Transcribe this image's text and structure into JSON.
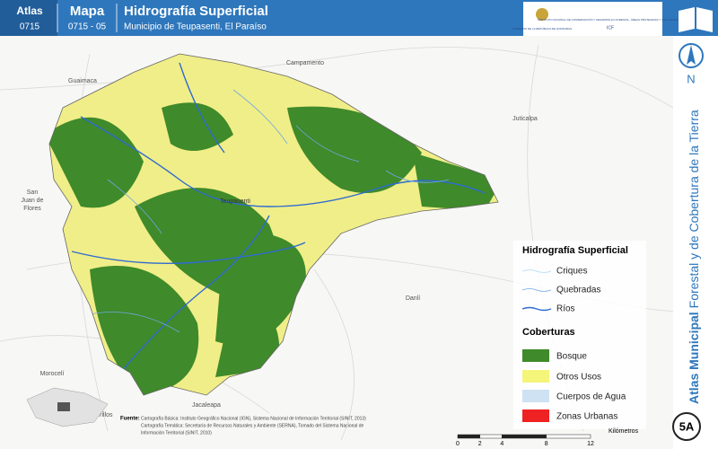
{
  "header": {
    "atlas_label": "Atlas",
    "atlas_code": "0715",
    "map_label": "Mapa",
    "map_code": "0715 - 05",
    "title": "Hidrografía Superficial",
    "subtitle": "Municipio de Teupasenti, El Paraíso",
    "logo": {
      "government": "GOBIERNO DE LA REPÚBLICA DE HONDURAS",
      "institute": "INSTITUTO NACIONAL DE CONSERVACIÓN Y DESARROLLO FORESTAL, ÁREAS PROTEGIDAS Y VIDA SILVESTRE",
      "acronym": "ICF"
    }
  },
  "places": {
    "campamento": "Campamento",
    "guaimaca": "Guaimaca",
    "juticalpa": "Juticalpa",
    "san_juan": [
      "San",
      "Juan de",
      "Flores"
    ],
    "teupasenti": "Teupasenti",
    "danli": "Danlí",
    "moroceli": "Morocelí",
    "jacaleapa": "Jacaleapa",
    "potrerillos": "Potrerillos"
  },
  "legend": {
    "hydro_title": "Hidrografía Superficial",
    "hydro": [
      "Criques",
      "Quebradas",
      "Ríos"
    ],
    "cover_title": "Coberturas",
    "cover": [
      "Bosque",
      "Otros Usos",
      "Cuerpos de Agua",
      "Zonas Urbanas"
    ]
  },
  "sidebar": {
    "north": "N",
    "atlas": "Atlas Municipal",
    "subtitle": "Forestal y de Cobertura de la Tierra",
    "sheet": "5A"
  },
  "scale": {
    "unit": "Kilómetros",
    "ticks": [
      0,
      2,
      4,
      8,
      12
    ]
  },
  "sources": {
    "label": "Fuente:",
    "lines": [
      "Cartografía Básica: Instituto Geográfico Nacional (IGN), Sistema Nacional de Información Territorial (SINIT, 2013)",
      "Cartografía Temática: Secretaría de Recursos Naturales y Ambiente (SERNA), Tomado del Sistema Nacional de",
      "Información Territorial (SINIT, 2010)"
    ]
  }
}
